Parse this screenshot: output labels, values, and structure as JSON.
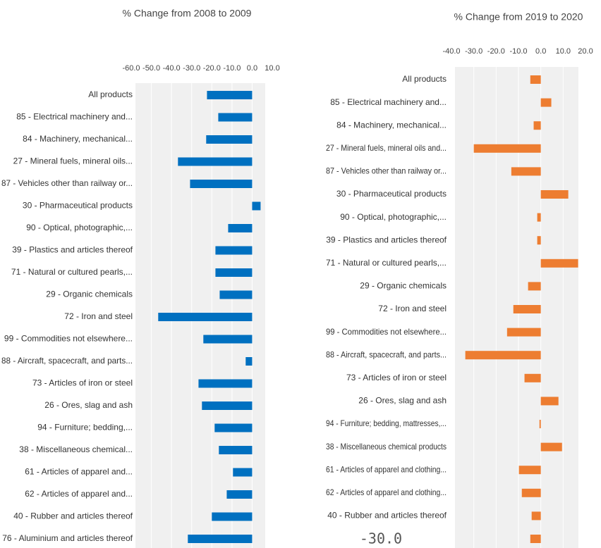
{
  "chart_data": [
    {
      "type": "barh",
      "title": "% Change from 2008 to 2009",
      "color": "#0070c0",
      "categories": [
        "All products",
        "85 - Electrical machinery and...",
        "84 - Machinery, mechanical...",
        "27 - Mineral fuels, mineral oils...",
        "87 - Vehicles other than railway or...",
        "30 - Pharmaceutical products",
        "90 - Optical, photographic,...",
        "39 - Plastics and articles thereof",
        "71 - Natural or cultured pearls,...",
        "29 - Organic chemicals",
        "72 - Iron and steel",
        "99 - Commodities not elsewhere...",
        "88 - Aircraft, spacecraft, and parts...",
        "73 - Articles of iron or steel",
        "26 - Ores, slag and ash",
        "94 - Furniture; bedding,...",
        "38 - Miscellaneous chemical...",
        "61 - Articles of apparel and...",
        "62 - Articles of apparel and...",
        "40 - Rubber and articles thereof",
        "76 - Aluminium and articles thereof"
      ],
      "values": [
        -22.4,
        -16.8,
        -22.8,
        -36.8,
        -30.8,
        4.2,
        -11.9,
        -18.2,
        -18.2,
        -16.1,
        -46.6,
        -24.2,
        -3.2,
        -26.6,
        -24.9,
        -18.6,
        -16.5,
        -9.5,
        -12.6,
        -20.0,
        -31.9
      ],
      "xlim": [
        -60,
        10
      ],
      "xticks": [
        {
          "value": -60,
          "label": "-60.0"
        },
        {
          "value": -50,
          "label": "-50.0"
        },
        {
          "value": -40,
          "label": "-40.0"
        },
        {
          "value": -30,
          "label": "-30.0"
        },
        {
          "value": -20,
          "label": "-20.0"
        },
        {
          "value": -10,
          "label": "-10.0"
        },
        {
          "value": 0,
          "label": "0.0"
        },
        {
          "value": 10,
          "label": "10.0"
        }
      ],
      "grid": true
    },
    {
      "type": "barh",
      "title": "% Change from 2019 to 2020",
      "color": "#ed7d31",
      "categories": [
        "All products",
        "85 - Electrical machinery and...",
        "84 - Machinery, mechanical...",
        "27 - Mineral fuels, mineral oils and...",
        "87 - Vehicles other than railway or...",
        "30 - Pharmaceutical products",
        "90 - Optical, photographic,...",
        "39 - Plastics and articles thereof",
        "71 - Natural or cultured pearls,...",
        "29 - Organic chemicals",
        "72 - Iron and steel",
        "99 - Commodities not elsewhere...",
        "88 - Aircraft, spacecraft, and parts...",
        "73 - Articles of iron or steel",
        "26 - Ores, slag and ash",
        "94 - Furniture; bedding, mattresses,...",
        "38 - Miscellaneous chemical products",
        "61 - Articles of apparel and clothing...",
        "62 - Articles of apparel and clothing...",
        "40 - Rubber and articles thereof",
        null
      ],
      "values": [
        -4.7,
        4.7,
        -3.2,
        -30.0,
        -13.2,
        12.3,
        -1.6,
        -1.6,
        16.7,
        -5.7,
        -12.3,
        -15.1,
        -33.8,
        -7.3,
        7.9,
        -0.6,
        9.5,
        -9.8,
        -8.5,
        -4.1,
        -4.7
      ],
      "xlim": [
        -40,
        20
      ],
      "xticks": [
        {
          "value": -40,
          "label": "-40.0"
        },
        {
          "value": -30,
          "label": "-30.0"
        },
        {
          "value": -20,
          "label": "-20.0"
        },
        {
          "value": -10,
          "label": "-10.0"
        },
        {
          "value": 0,
          "label": "0.0"
        },
        {
          "value": 10,
          "label": "10.0"
        },
        {
          "value": 20,
          "label": "20.0"
        }
      ],
      "annotation": "-30.0",
      "grid": true
    }
  ]
}
